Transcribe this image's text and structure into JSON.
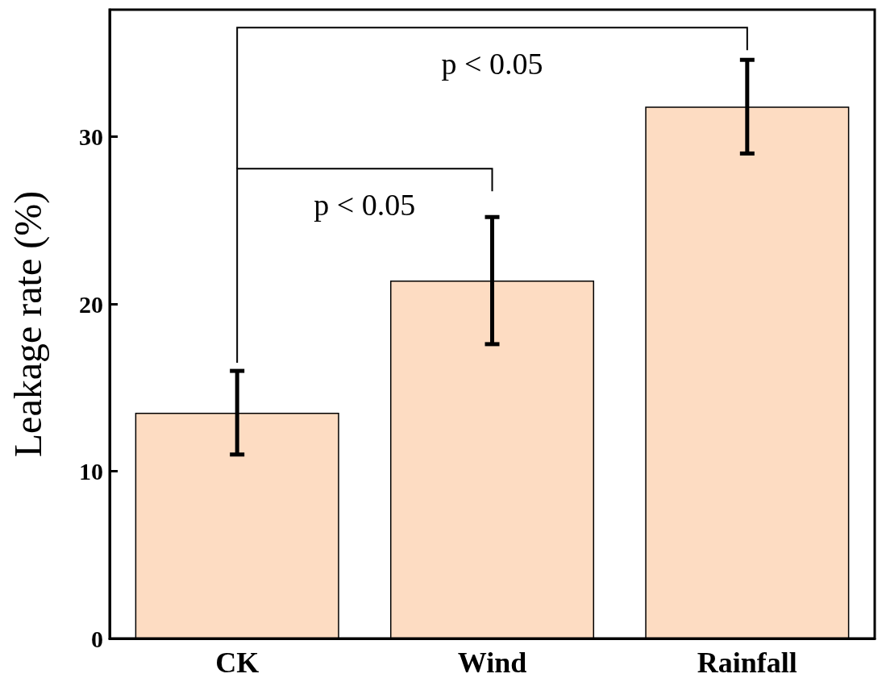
{
  "chart_data": {
    "type": "bar",
    "ylabel": "Leakage rate (%)",
    "categories": [
      "CK",
      "Wind",
      "Rainfall"
    ],
    "values": [
      13.5,
      21.4,
      31.8
    ],
    "errors": [
      2.5,
      3.8,
      2.8
    ],
    "color": "#fddcc2",
    "ylim": [
      0,
      37.6
    ],
    "yticks": [
      0,
      10,
      20,
      30
    ],
    "grid": false,
    "annotations": [
      "p < 0.05",
      "p < 0.05"
    ]
  }
}
